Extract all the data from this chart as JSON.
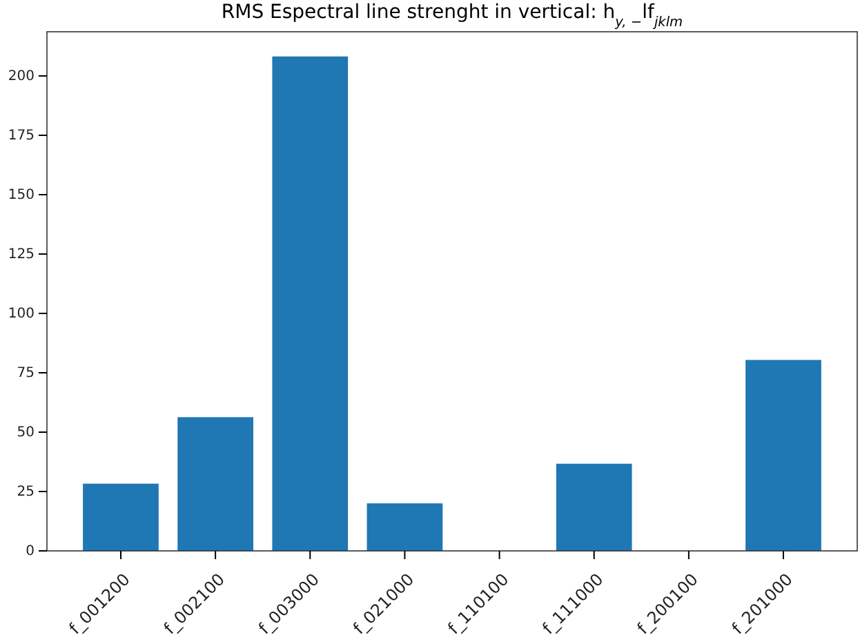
{
  "chart_data": {
    "type": "bar",
    "title": "RMS Espectral line strenght in vertical: h$_{y, −}$lf$_{jklm}$",
    "categories": [
      "f_001200",
      "f_002100",
      "f_003000",
      "f_021000",
      "f_110100",
      "f_111000",
      "f_200100",
      "f_201000"
    ],
    "values": [
      28.3,
      56.3,
      208.2,
      20.0,
      0,
      36.7,
      0,
      80.4
    ],
    "color": "#1f77b4",
    "ylim": [
      0,
      218.6
    ],
    "yticks": [
      0,
      25,
      50,
      75,
      100,
      125,
      150,
      175,
      200
    ],
    "grid": false
  }
}
